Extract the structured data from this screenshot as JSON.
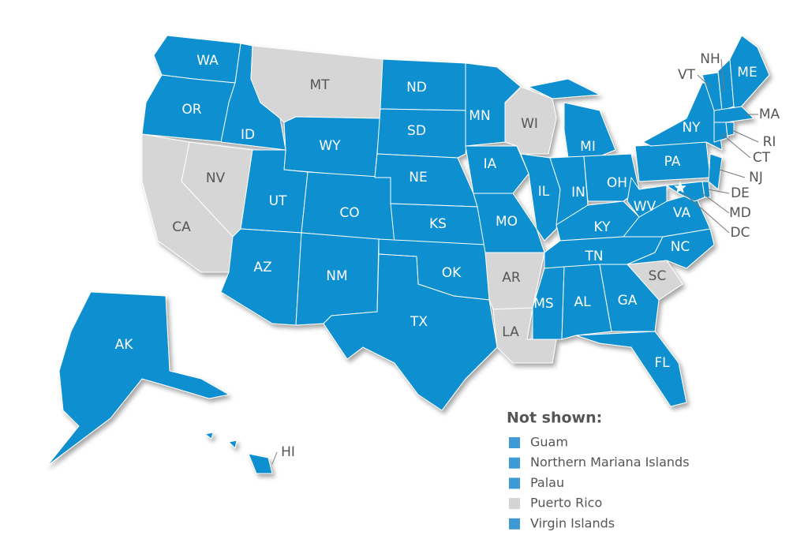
{
  "states": [
    {
      "label": "WA",
      "color": "#0b8fd0"
    },
    {
      "label": "OR",
      "color": "#0b8fd0"
    },
    {
      "label": "ID",
      "color": "#0b8fd0"
    },
    {
      "label": "MT",
      "color": "#d6d6d6"
    },
    {
      "label": "WY",
      "color": "#0b8fd0"
    },
    {
      "label": "NV",
      "color": "#d6d6d6"
    },
    {
      "label": "CA",
      "color": "#d6d6d6"
    },
    {
      "label": "UT",
      "color": "#0b8fd0"
    },
    {
      "label": "CO",
      "color": "#0b8fd0"
    },
    {
      "label": "AZ",
      "color": "#0b8fd0"
    },
    {
      "label": "NM",
      "color": "#0b8fd0"
    },
    {
      "label": "ND",
      "color": "#0b8fd0"
    },
    {
      "label": "SD",
      "color": "#0b8fd0"
    },
    {
      "label": "NE",
      "color": "#0b8fd0"
    },
    {
      "label": "KS",
      "color": "#0b8fd0"
    },
    {
      "label": "OK",
      "color": "#0b8fd0"
    },
    {
      "label": "TX",
      "color": "#0b8fd0"
    },
    {
      "label": "MN",
      "color": "#0b8fd0"
    },
    {
      "label": "IA",
      "color": "#0b8fd0"
    },
    {
      "label": "MO",
      "color": "#0b8fd0"
    },
    {
      "label": "AR",
      "color": "#d6d6d6"
    },
    {
      "label": "LA",
      "color": "#d6d6d6"
    },
    {
      "label": "WI",
      "color": "#d6d6d6"
    },
    {
      "label": "IL",
      "color": "#0b8fd0"
    },
    {
      "label": "MI",
      "color": "#0b8fd0"
    },
    {
      "label": "IN",
      "color": "#0b8fd0"
    },
    {
      "label": "OH",
      "color": "#0b8fd0"
    },
    {
      "label": "KY",
      "color": "#0b8fd0"
    },
    {
      "label": "TN",
      "color": "#0b8fd0"
    },
    {
      "label": "MS",
      "color": "#0b8fd0"
    },
    {
      "label": "AL",
      "color": "#0b8fd0"
    },
    {
      "label": "GA",
      "color": "#0b8fd0"
    },
    {
      "label": "FL",
      "color": "#0b8fd0"
    },
    {
      "label": "SC",
      "color": "#d6d6d6"
    },
    {
      "label": "NC",
      "color": "#0b8fd0"
    },
    {
      "label": "VA",
      "color": "#0b8fd0"
    },
    {
      "label": "WV",
      "color": "#0b8fd0"
    },
    {
      "label": "PA",
      "color": "#0b8fd0"
    },
    {
      "label": "NY",
      "color": "#0b8fd0"
    },
    {
      "label": "NJ",
      "color": "#0b8fd0"
    },
    {
      "label": "DE",
      "color": "#0b8fd0"
    },
    {
      "label": "MD",
      "color": "#0b8fd0"
    },
    {
      "label": "DC",
      "color": "#ffffff"
    },
    {
      "label": "VT",
      "color": "#0b8fd0"
    },
    {
      "label": "NH",
      "color": "#0b8fd0"
    },
    {
      "label": "ME",
      "color": "#0b8fd0"
    },
    {
      "label": "MA",
      "color": "#0b8fd0"
    },
    {
      "label": "CT",
      "color": "#0b8fd0"
    },
    {
      "label": "RI",
      "color": "#0b8fd0"
    },
    {
      "label": "AK",
      "color": "#0b8fd0"
    },
    {
      "label": "HI",
      "color": "#0b8fd0"
    }
  ],
  "legend": {
    "title": "Not shown:",
    "items": [
      {
        "label": "Guam",
        "color": "#3e9ad5"
      },
      {
        "label": "Northern Mariana Islands",
        "color": "#3e9ad5"
      },
      {
        "label": "Palau",
        "color": "#3e9ad5"
      },
      {
        "label": "Puerto Rico",
        "color": "#d4d4d4"
      },
      {
        "label": "Virgin Islands",
        "color": "#3e9ad5"
      }
    ]
  }
}
